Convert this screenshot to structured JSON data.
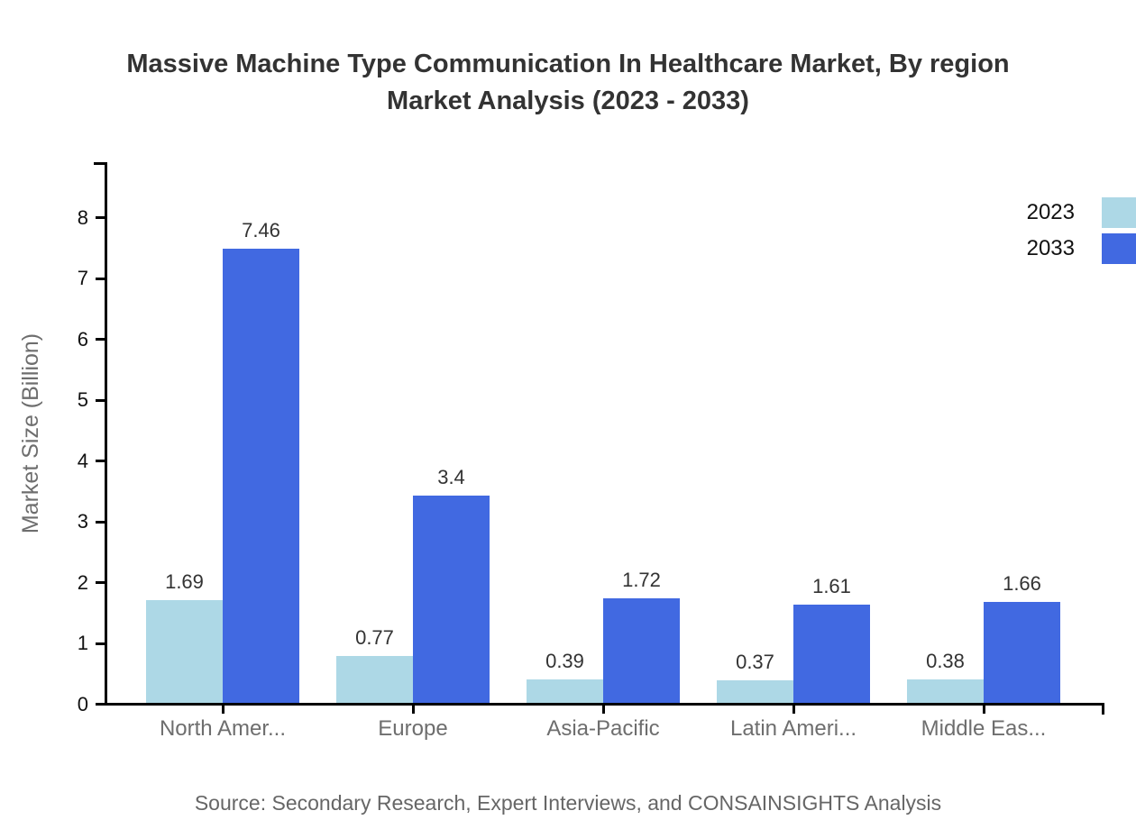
{
  "title": {
    "lines": [
      "Massive Machine Type Communication In Healthcare Market, By region",
      "Market Analysis (2023 - 2033)"
    ]
  },
  "chart_data": {
    "type": "bar",
    "title": "Massive Machine Type Communication In Healthcare Market, By region Market Analysis (2023 - 2033)",
    "categories": [
      "North Amer...",
      "Europe",
      "Asia-Pacific",
      "Latin Ameri...",
      "Middle Eas..."
    ],
    "series": [
      {
        "name": "2023",
        "color": "#add8e6",
        "values": [
          1.69,
          0.77,
          0.39,
          0.37,
          0.38
        ]
      },
      {
        "name": "2033",
        "color": "#4169e1",
        "values": [
          7.46,
          3.4,
          1.72,
          1.61,
          1.66
        ]
      }
    ],
    "xlabel": "",
    "ylabel": "Market Size (Billion)",
    "yticks": [
      0,
      1,
      2,
      3,
      4,
      5,
      6,
      7,
      8
    ],
    "ylim": [
      0,
      8.9
    ],
    "grid": false,
    "legend_position": "top-right",
    "bar_value_labels_shown": true
  },
  "legend": {
    "items": [
      {
        "label": "2023",
        "color": "#add8e6"
      },
      {
        "label": "2033",
        "color": "#4169e1"
      }
    ]
  },
  "source": "Source: Secondary Research, Expert Interviews, and CONSAINSIGHTS Analysis",
  "colors": {
    "axis": "#000000",
    "title_text": "#333333",
    "tick_text": "#111111",
    "category_text": "#6e6e6e",
    "value_label_text": "#333333",
    "source_text": "#666666",
    "background": "#ffffff",
    "series_2023": "#add8e6",
    "series_2033": "#4169e1"
  }
}
